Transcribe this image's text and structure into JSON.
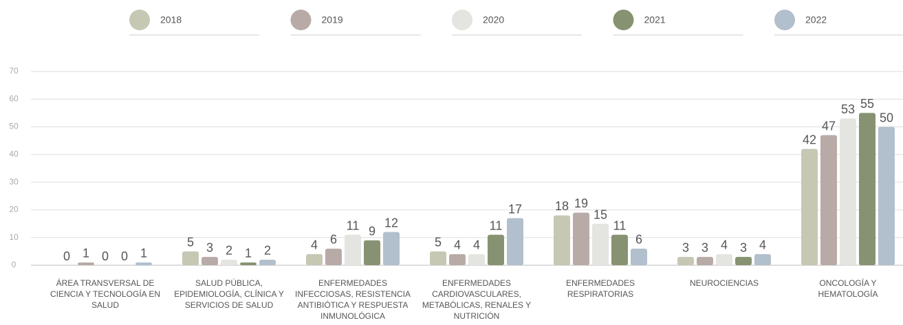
{
  "chart_data": {
    "type": "bar",
    "categories": [
      "ÁREA TRANSVERSAL DE CIENCIA Y TECNOLOGÍA EN SALUD",
      "SALUD PÚBLICA, EPIDEMIOLOGÍA, CLÍNICA Y SERVICIOS DE SALUD",
      "ENFERMEDADES INFECCIOSAS, RESISTENCIA ANTIBIÓTICA Y RESPUESTA INMUNOLÓGICA",
      "ENFERMEDADES CARDIOVASCULARES, METABÓLICAS, RENALES Y NUTRICIÓN",
      "ENFERMEDADES RESPIRATORIAS",
      "NEUROCIENCIAS",
      "ONCOLOGÍA Y HEMATOLOGÍA"
    ],
    "series": [
      {
        "name": "2018",
        "color": "#c6c8b4",
        "values": [
          0,
          5,
          4,
          5,
          18,
          3,
          42
        ]
      },
      {
        "name": "2019",
        "color": "#b8aba7",
        "values": [
          1,
          3,
          6,
          4,
          19,
          3,
          47
        ]
      },
      {
        "name": "2020",
        "color": "#e4e4e0",
        "values": [
          0,
          2,
          11,
          4,
          15,
          4,
          53
        ]
      },
      {
        "name": "2021",
        "color": "#879272",
        "values": [
          0,
          1,
          9,
          11,
          11,
          3,
          55
        ]
      },
      {
        "name": "2022",
        "color": "#b2bfcc",
        "values": [
          1,
          2,
          12,
          17,
          6,
          4,
          50
        ]
      }
    ],
    "ylim": [
      0,
      70
    ],
    "yticks": [
      0,
      10,
      20,
      30,
      40,
      50,
      60,
      70
    ],
    "grid": true,
    "legend": "top"
  }
}
